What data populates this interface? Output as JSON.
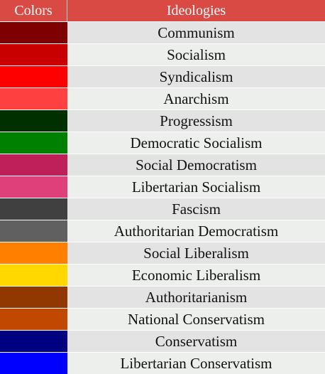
{
  "header": {
    "colors_label": "Colors",
    "ideologies_label": "Ideologies",
    "header_color": "#d94a44"
  },
  "rows": [
    {
      "color": "#7f0000",
      "label": "Communism"
    },
    {
      "color": "#c80000",
      "label": "Socialism"
    },
    {
      "color": "#ff0000",
      "label": "Syndicalism"
    },
    {
      "color": "#ff4040",
      "label": "Anarchism"
    },
    {
      "color": "#003000",
      "label": "Progressism"
    },
    {
      "color": "#008000",
      "label": "Democratic Socialism"
    },
    {
      "color": "#c0205a",
      "label": "Social Democratism"
    },
    {
      "color": "#e0407a",
      "label": "Libertarian Socialism"
    },
    {
      "color": "#404040",
      "label": "Fascism"
    },
    {
      "color": "#606060",
      "label": "Authoritarian Democratism"
    },
    {
      "color": "#ff8000",
      "label": "Social Liberalism"
    },
    {
      "color": "#ffd800",
      "label": "Economic Liberalism"
    },
    {
      "color": "#903800",
      "label": "Authoritarianism"
    },
    {
      "color": "#c04800",
      "label": "National Conservatism"
    },
    {
      "color": "#000080",
      "label": "Conservatism"
    },
    {
      "color": "#0000ff",
      "label": "Libertarian Conservatism"
    }
  ]
}
